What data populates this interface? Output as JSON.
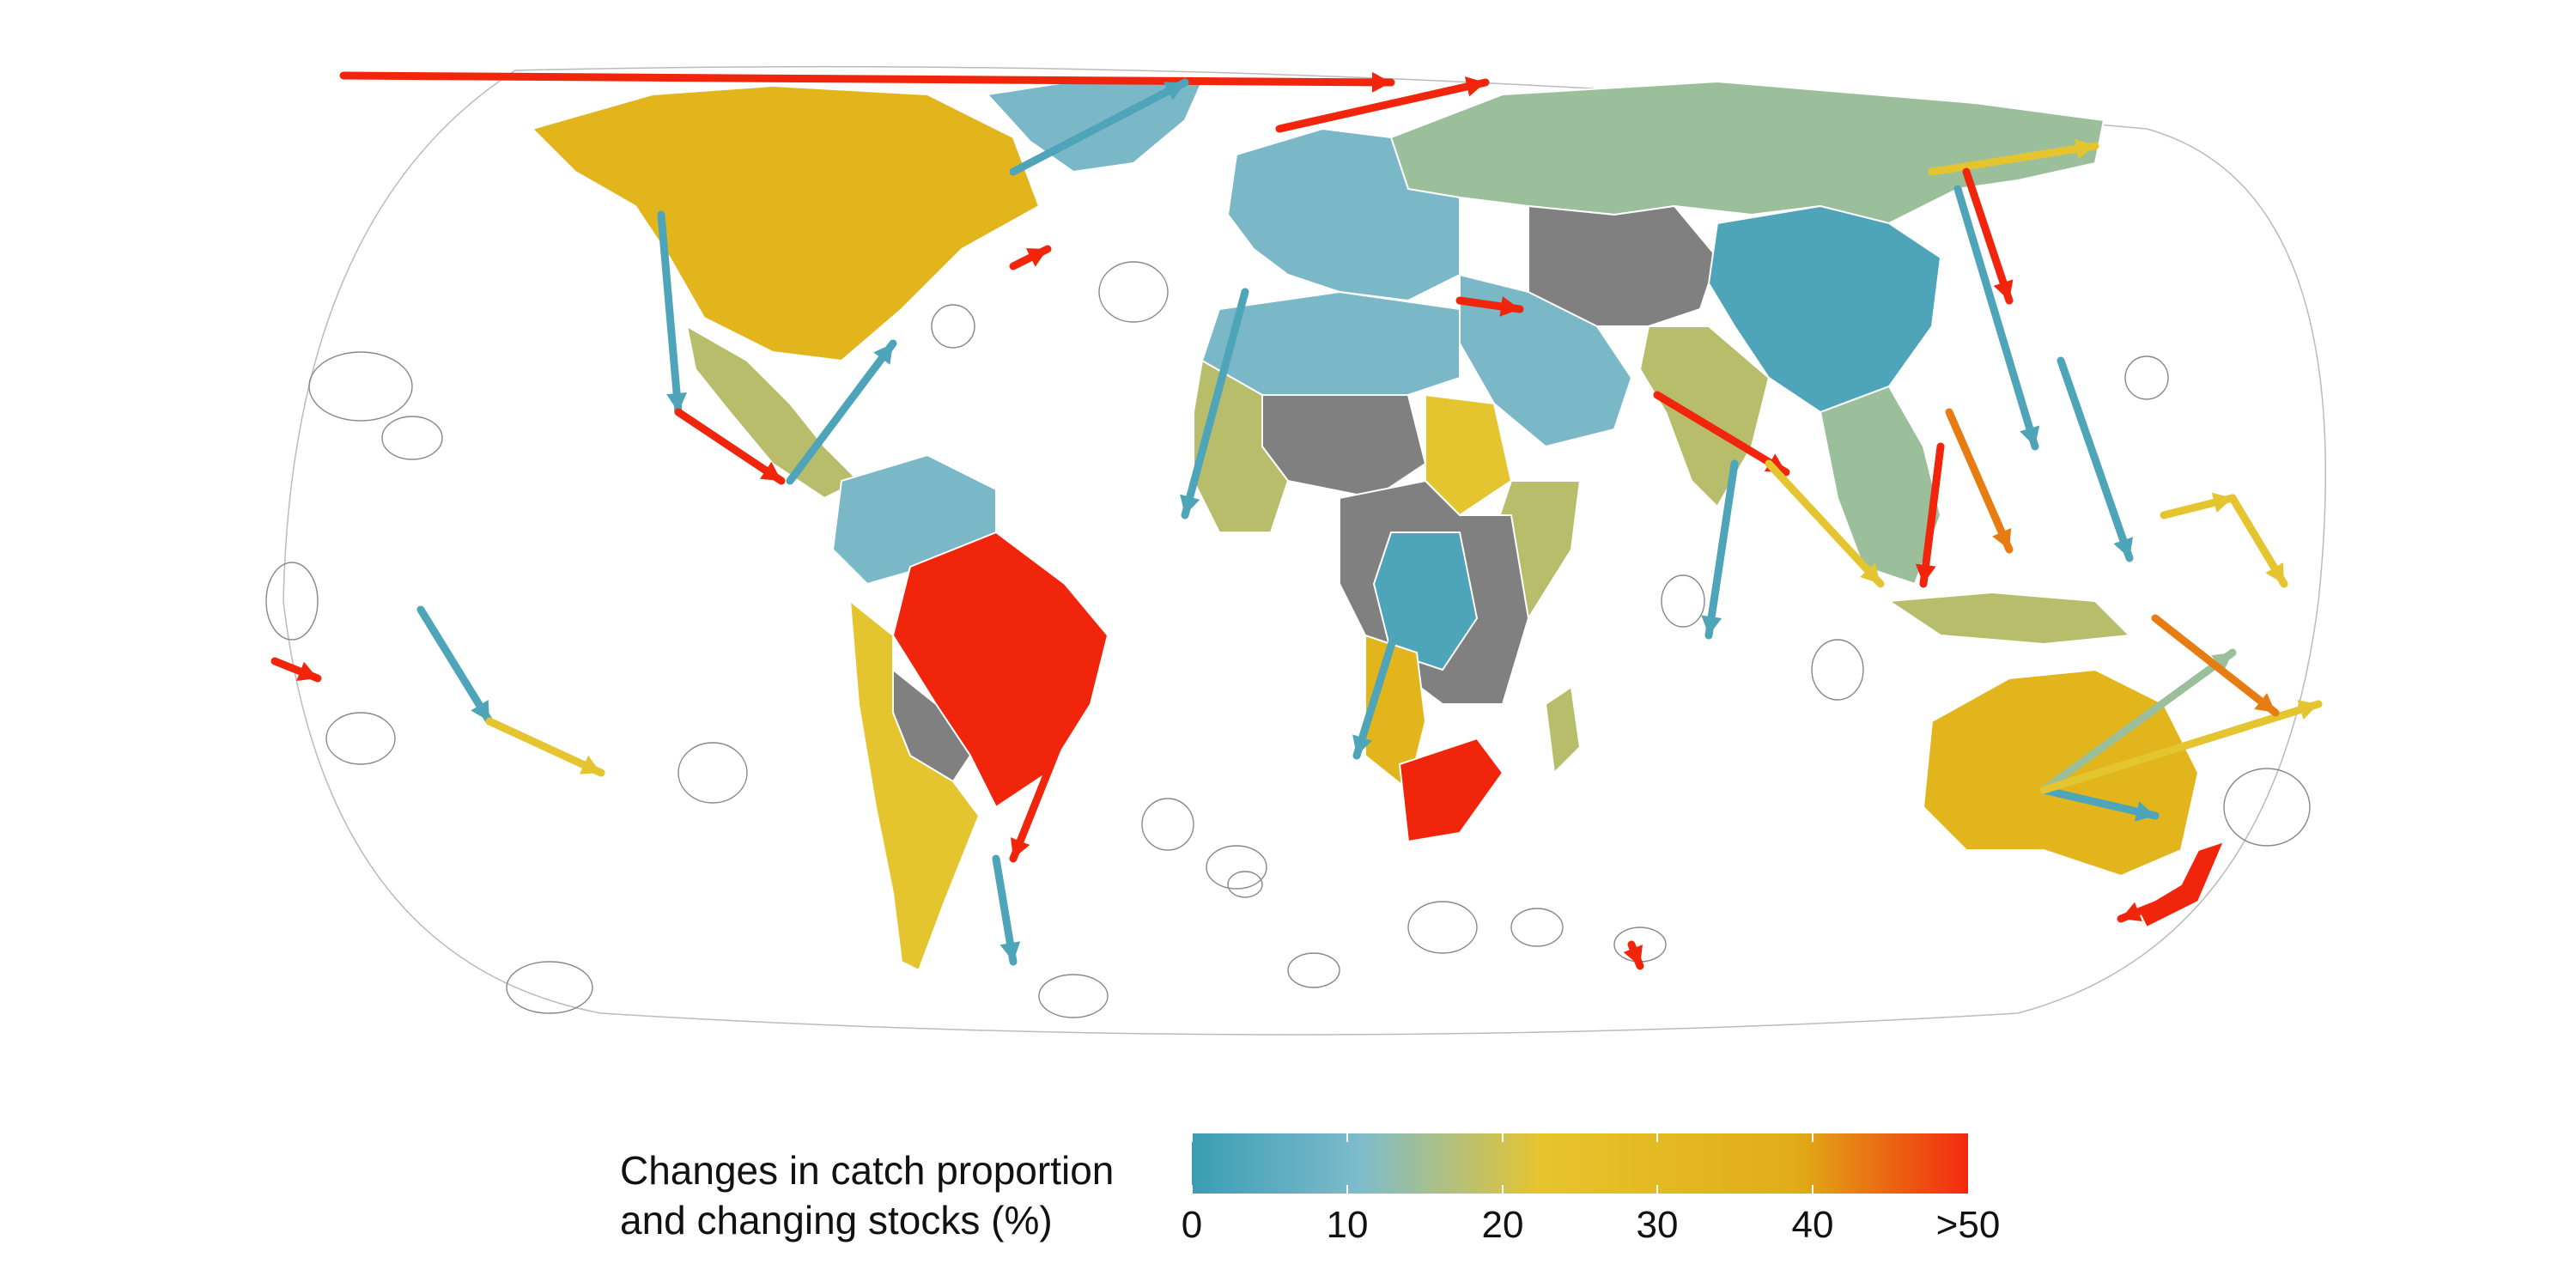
{
  "legend": {
    "title_line1": "Changes in catch proportion",
    "title_line2": "and changing stocks (%)",
    "ticks": [
      "0",
      "10",
      "20",
      "30",
      "40",
      ">50"
    ],
    "color_stops": [
      "#3a9db3",
      "#7fbccb",
      "#e6c42e",
      "#e1ac17",
      "#f32a0f"
    ]
  },
  "colors": {
    "blue": "#4ea4b8",
    "light_blue": "#7ab8c8",
    "sage": "#9abf9a",
    "olive": "#b7bd6a",
    "yellow": "#e4c52f",
    "gold": "#e2b51c",
    "orange": "#e67c12",
    "red": "#f0250c",
    "no_data": "#808080"
  },
  "regions": [
    {
      "id": "russia",
      "color": "sage"
    },
    {
      "id": "north-america",
      "color": "gold"
    },
    {
      "id": "central-america",
      "color": "olive"
    },
    {
      "id": "brazil",
      "color": "red"
    },
    {
      "id": "south-america-north",
      "color": "light_blue"
    },
    {
      "id": "south-america-south",
      "color": "yellow"
    },
    {
      "id": "paraguay-bolivia",
      "color": "no_data"
    },
    {
      "id": "europe",
      "color": "light_blue"
    },
    {
      "id": "north-africa",
      "color": "light_blue"
    },
    {
      "id": "sahel",
      "color": "no_data"
    },
    {
      "id": "west-africa",
      "color": "olive"
    },
    {
      "id": "sudan",
      "color": "yellow"
    },
    {
      "id": "central-africa",
      "color": "no_data"
    },
    {
      "id": "drc",
      "color": "blue"
    },
    {
      "id": "angola-namibia",
      "color": "gold"
    },
    {
      "id": "south-africa",
      "color": "red"
    },
    {
      "id": "east-africa",
      "color": "olive"
    },
    {
      "id": "middle-east",
      "color": "light_blue"
    },
    {
      "id": "central-asia",
      "color": "no_data"
    },
    {
      "id": "china",
      "color": "blue"
    },
    {
      "id": "india",
      "color": "olive"
    },
    {
      "id": "southeast-asia",
      "color": "sage"
    },
    {
      "id": "australia",
      "color": "gold"
    },
    {
      "id": "new-zealand",
      "color": "red"
    },
    {
      "id": "indonesia",
      "color": "olive"
    },
    {
      "id": "greenland-iceland",
      "color": "light_blue"
    },
    {
      "id": "madagascar",
      "color": "olive"
    }
  ],
  "arrows": [
    {
      "color": "red",
      "from": [
        400,
        88
      ],
      "to": [
        1620,
        96
      ]
    },
    {
      "color": "red",
      "from": [
        1490,
        150
      ],
      "to": [
        1730,
        96
      ]
    },
    {
      "color": "blue",
      "from": [
        1180,
        200
      ],
      "to": [
        1380,
        96
      ]
    },
    {
      "color": "blue",
      "from": [
        770,
        250
      ],
      "to": [
        790,
        480
      ]
    },
    {
      "color": "red",
      "from": [
        790,
        480
      ],
      "to": [
        910,
        560
      ]
    },
    {
      "color": "blue",
      "from": [
        920,
        560
      ],
      "to": [
        1040,
        400
      ]
    },
    {
      "color": "red",
      "from": [
        1180,
        310
      ],
      "to": [
        1220,
        290
      ]
    },
    {
      "color": "red",
      "from": [
        1700,
        350
      ],
      "to": [
        1770,
        360
      ]
    },
    {
      "color": "red",
      "from": [
        1930,
        460
      ],
      "to": [
        2080,
        550
      ]
    },
    {
      "color": "blue",
      "from": [
        1450,
        340
      ],
      "to": [
        1380,
        600
      ]
    },
    {
      "color": "blue",
      "from": [
        1630,
        720
      ],
      "to": [
        1580,
        880
      ]
    },
    {
      "color": "red",
      "from": [
        1260,
        800
      ],
      "to": [
        1180,
        1000
      ]
    },
    {
      "color": "blue",
      "from": [
        1160,
        1000
      ],
      "to": [
        1180,
        1120
      ]
    },
    {
      "color": "blue",
      "from": [
        2280,
        220
      ],
      "to": [
        2370,
        520
      ]
    },
    {
      "color": "yellow",
      "from": [
        2250,
        200
      ],
      "to": [
        2440,
        170
      ]
    },
    {
      "color": "red",
      "from": [
        2290,
        200
      ],
      "to": [
        2340,
        350
      ]
    },
    {
      "color": "blue",
      "from": [
        2400,
        420
      ],
      "to": [
        2480,
        650
      ]
    },
    {
      "color": "orange",
      "from": [
        2270,
        480
      ],
      "to": [
        2340,
        640
      ]
    },
    {
      "color": "red",
      "from": [
        2260,
        520
      ],
      "to": [
        2240,
        680
      ]
    },
    {
      "color": "yellow",
      "from": [
        2060,
        540
      ],
      "to": [
        2190,
        680
      ]
    },
    {
      "color": "blue",
      "from": [
        2020,
        540
      ],
      "to": [
        1990,
        740
      ]
    },
    {
      "color": "blue",
      "from": [
        2380,
        920
      ],
      "to": [
        2510,
        950
      ]
    },
    {
      "color": "sage",
      "from": [
        2380,
        920
      ],
      "to": [
        2600,
        760
      ]
    },
    {
      "color": "yellow",
      "from": [
        2380,
        920
      ],
      "to": [
        2700,
        820
      ]
    },
    {
      "color": "orange",
      "from": [
        2510,
        720
      ],
      "to": [
        2650,
        830
      ]
    },
    {
      "color": "red",
      "from": [
        2520,
        1050
      ],
      "to": [
        2470,
        1070
      ]
    },
    {
      "color": "yellow",
      "from": [
        2520,
        600
      ],
      "to": [
        2600,
        580
      ]
    },
    {
      "color": "yellow",
      "from": [
        2600,
        580
      ],
      "to": [
        2660,
        680
      ]
    },
    {
      "color": "blue",
      "from": [
        490,
        710
      ],
      "to": [
        570,
        840
      ]
    },
    {
      "color": "yellow",
      "from": [
        570,
        840
      ],
      "to": [
        700,
        900
      ]
    },
    {
      "color": "red",
      "from": [
        320,
        770
      ],
      "to": [
        370,
        790
      ]
    },
    {
      "color": "red",
      "from": [
        1900,
        1100
      ],
      "to": [
        1910,
        1125
      ]
    }
  ]
}
